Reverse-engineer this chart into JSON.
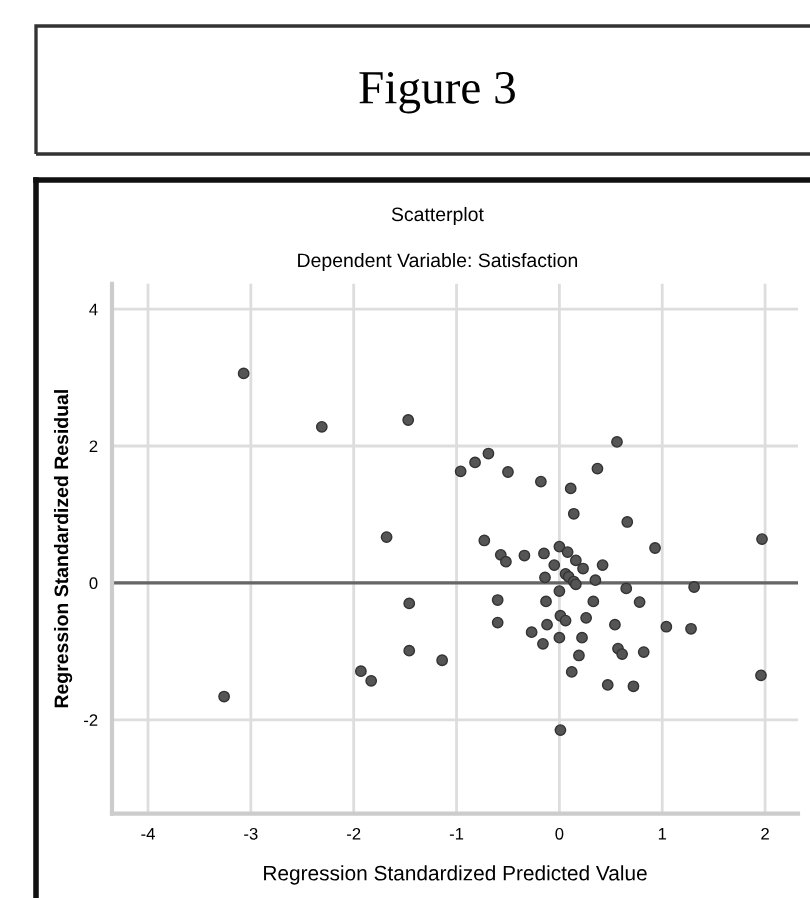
{
  "chart_data": {
    "type": "scatter",
    "title": "Scatterplot",
    "subtitle": "Dependent Variable: Satisfaction",
    "xlabel": "Regression Standardized Predicted Value",
    "ylabel": "Regression Standardized Residual",
    "annotations": [
      "Figure 3"
    ],
    "x": [
      -3.07,
      -2.31,
      -1.47,
      -1.68,
      -0.96,
      -0.82,
      -0.69,
      -0.5,
      -0.18,
      0.11,
      0.14,
      0.37,
      0.56,
      0.66,
      0.93,
      1.97,
      -0.73,
      -0.57,
      -0.52,
      -0.34,
      -0.15,
      0.0,
      0.08,
      0.16,
      0.23,
      0.42,
      -0.05,
      -0.14,
      0.06,
      0.09,
      0.14,
      0.16,
      0.0,
      0.35,
      0.65,
      1.31,
      -1.46,
      -1.46,
      -1.14,
      -0.6,
      -0.6,
      -0.13,
      0.33,
      0.78,
      0.01,
      0.06,
      0.26,
      -0.27,
      -0.12,
      0.54,
      1.04,
      1.28,
      -0.16,
      0.0,
      0.22,
      0.57,
      0.61,
      0.82,
      0.19,
      0.12,
      0.47,
      0.72,
      1.96,
      0.01,
      -1.93,
      -1.83,
      -3.26
    ],
    "values": [
      3.06,
      2.28,
      2.38,
      0.67,
      1.63,
      1.76,
      1.89,
      1.62,
      1.48,
      1.38,
      1.01,
      1.67,
      2.06,
      0.89,
      0.51,
      0.64,
      0.62,
      0.41,
      0.31,
      0.4,
      0.43,
      0.53,
      0.45,
      0.33,
      0.21,
      0.26,
      0.26,
      0.08,
      0.13,
      0.09,
      0.02,
      -0.02,
      -0.12,
      0.04,
      -0.08,
      -0.06,
      -0.3,
      -0.99,
      -1.13,
      -0.25,
      -0.58,
      -0.27,
      -0.27,
      -0.28,
      -0.48,
      -0.55,
      -0.51,
      -0.72,
      -0.61,
      -0.61,
      -0.64,
      -0.67,
      -0.89,
      -0.8,
      -0.8,
      -0.96,
      -1.04,
      -1.01,
      -1.06,
      -1.3,
      -1.49,
      -1.51,
      -1.35,
      -2.15,
      -1.29,
      -1.43,
      -1.66
    ],
    "color": "#555555",
    "marker": "circle",
    "xlim": [
      -4.35,
      2.32
    ],
    "ylim": [
      -3.37,
      4.37
    ],
    "xticks": [
      -4,
      -3,
      -2,
      -1,
      0,
      1,
      2
    ],
    "yticks": [
      -2,
      0,
      2,
      4
    ],
    "grid": true,
    "ref_lines": [
      {
        "axis": "y",
        "value": 0,
        "color": "#666666"
      }
    ]
  }
}
